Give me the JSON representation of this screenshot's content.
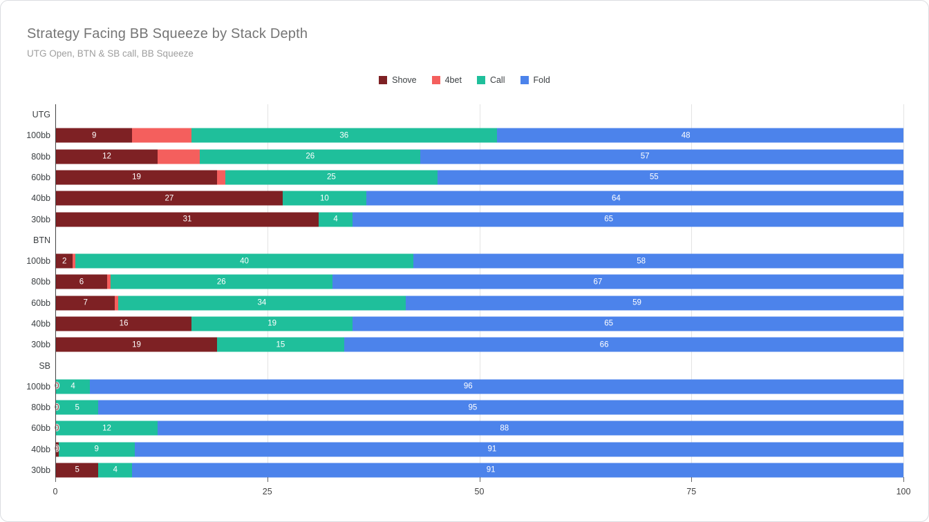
{
  "chart": {
    "title": "Strategy Facing BB Squeeze by Stack Depth",
    "subtitle": "UTG Open, BTN & SB call, BB Squeeze"
  },
  "legend": [
    {
      "label": "Shove",
      "color": "#7e2124"
    },
    {
      "label": "4bet",
      "color": "#f45f5d"
    },
    {
      "label": "Call",
      "color": "#1fbf9b"
    },
    {
      "label": "Fold",
      "color": "#4c83eb"
    }
  ],
  "chart_data": {
    "type": "bar",
    "orientation": "horizontal",
    "stacked": true,
    "title": "Strategy Facing BB Squeeze by Stack Depth",
    "subtitle": "UTG Open, BTN & SB call, BB Squeeze",
    "legend_position": "top-center",
    "grid": true,
    "xlim": [
      0,
      100
    ],
    "x_ticks": [
      0,
      25,
      50,
      75,
      100
    ],
    "series_names": [
      "Shove",
      "4bet",
      "Call",
      "Fold"
    ],
    "series_colors": [
      "#7e2124",
      "#f45f5d",
      "#1fbf9b",
      "#4c83eb"
    ],
    "groups": [
      {
        "label": "UTG",
        "rows": [
          {
            "label": "100bb",
            "values": [
              9,
              7,
              36,
              48
            ],
            "annotations": [
              "9",
              null,
              "36",
              "48"
            ]
          },
          {
            "label": "80bb",
            "values": [
              12,
              5,
              26,
              57
            ],
            "annotations": [
              "12",
              null,
              "26",
              "57"
            ]
          },
          {
            "label": "60bb",
            "values": [
              19,
              1,
              25,
              55
            ],
            "annotations": [
              "19",
              null,
              "25",
              "55"
            ]
          },
          {
            "label": "40bb",
            "values": [
              27,
              0,
              10,
              64
            ],
            "annotations": [
              "27",
              null,
              "10",
              "64"
            ]
          },
          {
            "label": "30bb",
            "values": [
              31,
              0,
              4,
              65
            ],
            "annotations": [
              "31",
              null,
              "4",
              "65"
            ]
          }
        ]
      },
      {
        "label": "BTN",
        "rows": [
          {
            "label": "100bb",
            "values": [
              2,
              0.3,
              40,
              58
            ],
            "annotations": [
              "2",
              null,
              "40",
              "58"
            ]
          },
          {
            "label": "80bb",
            "values": [
              6,
              0.4,
              26,
              67
            ],
            "annotations": [
              "6",
              null,
              "26",
              "67"
            ]
          },
          {
            "label": "60bb",
            "values": [
              7,
              0.4,
              34,
              59
            ],
            "annotations": [
              "7",
              null,
              "34",
              "59"
            ]
          },
          {
            "label": "40bb",
            "values": [
              16,
              0,
              19,
              65
            ],
            "annotations": [
              "16",
              null,
              "19",
              "65"
            ]
          },
          {
            "label": "30bb",
            "values": [
              19,
              0,
              15,
              66
            ],
            "annotations": [
              "19",
              null,
              "15",
              "66"
            ]
          }
        ]
      },
      {
        "label": "SB",
        "rows": [
          {
            "label": "100bb",
            "values": [
              0,
              0,
              4,
              96
            ],
            "annotations": [
              "0",
              null,
              "4",
              "96"
            ]
          },
          {
            "label": "80bb",
            "values": [
              0,
              0,
              5,
              95
            ],
            "annotations": [
              "0",
              null,
              "5",
              "95"
            ]
          },
          {
            "label": "60bb",
            "values": [
              0,
              0,
              12,
              88
            ],
            "annotations": [
              "0",
              null,
              "12",
              "88"
            ]
          },
          {
            "label": "40bb",
            "values": [
              0.3,
              0,
              9,
              91
            ],
            "annotations": [
              "0",
              null,
              "9",
              "91"
            ]
          },
          {
            "label": "30bb",
            "values": [
              5,
              0,
              4,
              91
            ],
            "annotations": [
              "5",
              null,
              "4",
              "91"
            ]
          }
        ]
      }
    ]
  },
  "colors": {
    "title": "#757575",
    "subtitle": "#9e9e9e",
    "axis_line": "#424242",
    "gridline": "#e3e3e3",
    "label_text": "#3c4043",
    "annotation_text": "#ffffff",
    "card_border": "#dadce0"
  }
}
